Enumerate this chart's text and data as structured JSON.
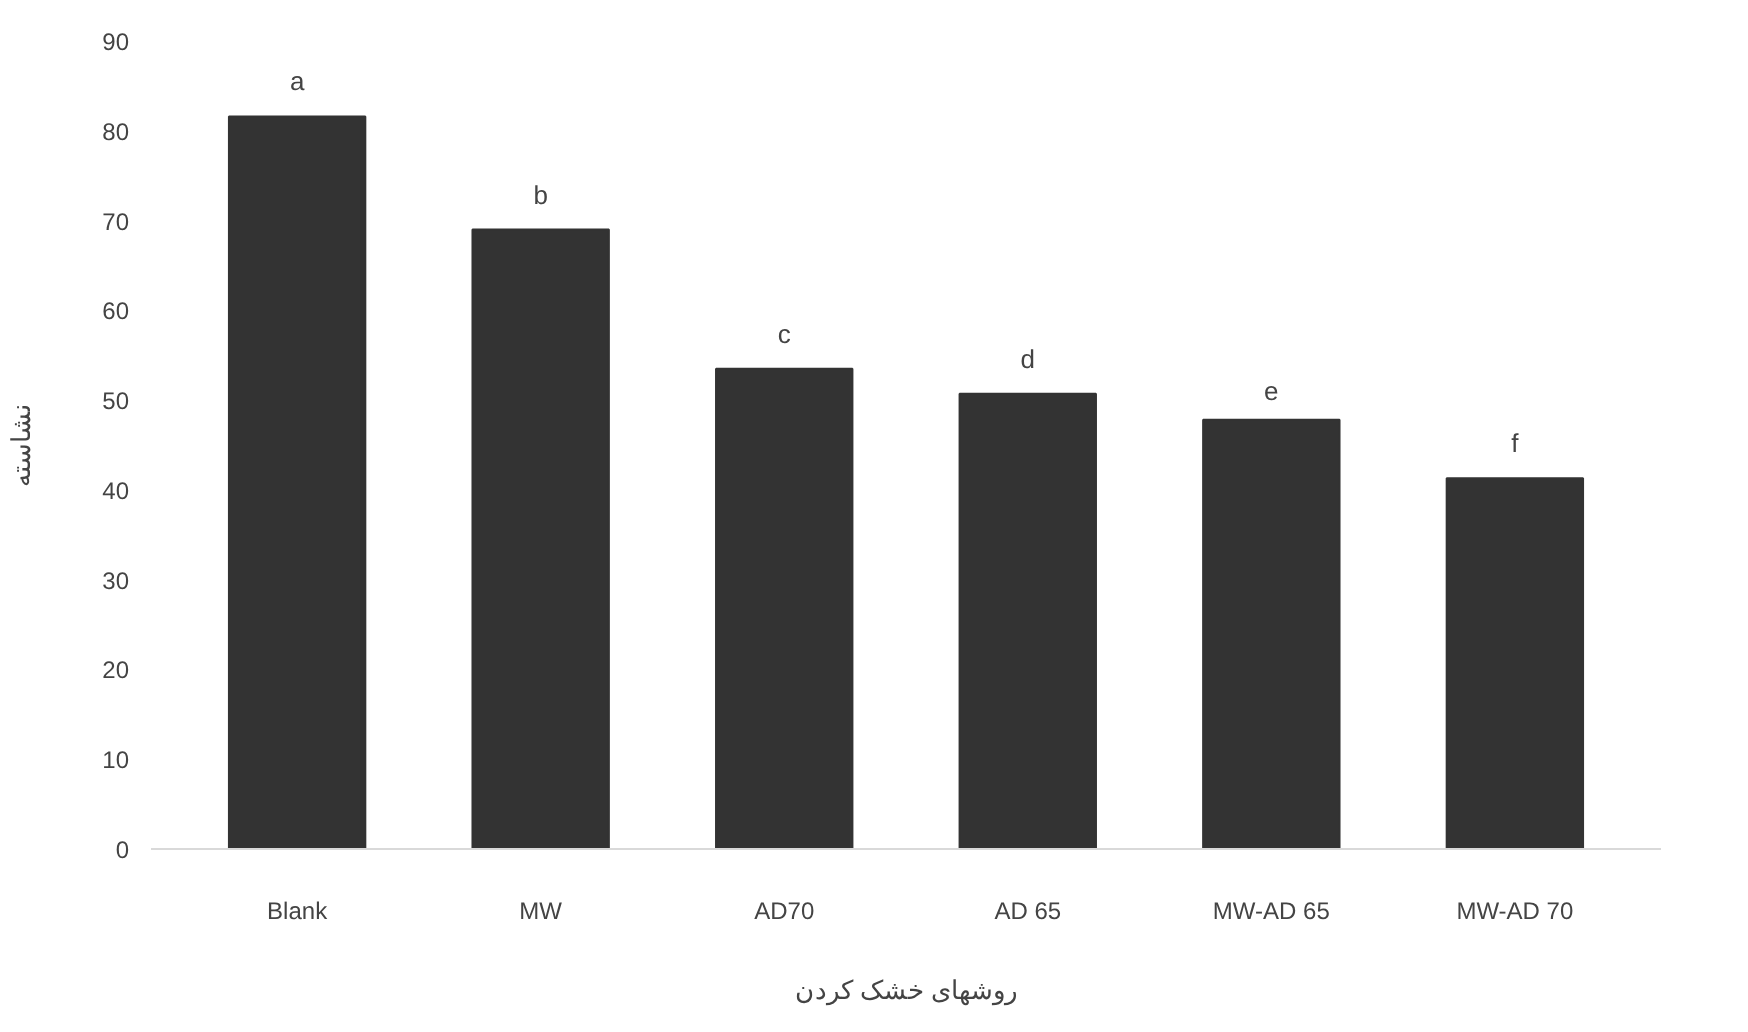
{
  "chart_data": {
    "type": "bar",
    "ylabel": "نشاسته",
    "xlabel": "روشهای خشک کردن",
    "categories": [
      "Blank",
      "MW",
      "AD70",
      "AD 65",
      "MW-AD 65",
      "MW-AD 70"
    ],
    "values": [
      81.6,
      69,
      53.5,
      50.7,
      47.8,
      41.3
    ],
    "color": "#333333",
    "ylim": [
      0,
      90
    ],
    "yticks": [
      0,
      10,
      20,
      30,
      40,
      50,
      60,
      70,
      80,
      90
    ],
    "grid": false,
    "annotations": [
      {
        "text": "a",
        "x": "Blank",
        "y": 81.6
      },
      {
        "text": "b",
        "x": "MW",
        "y": 69
      },
      {
        "text": "c",
        "x": "AD70",
        "y": 53.5
      },
      {
        "text": "d",
        "x": "AD 65",
        "y": 50.7
      },
      {
        "text": "e",
        "x": "MW-AD 65",
        "y": 47.8
      },
      {
        "text": "f",
        "x": "MW-AD 70",
        "y": 41.3
      }
    ]
  }
}
